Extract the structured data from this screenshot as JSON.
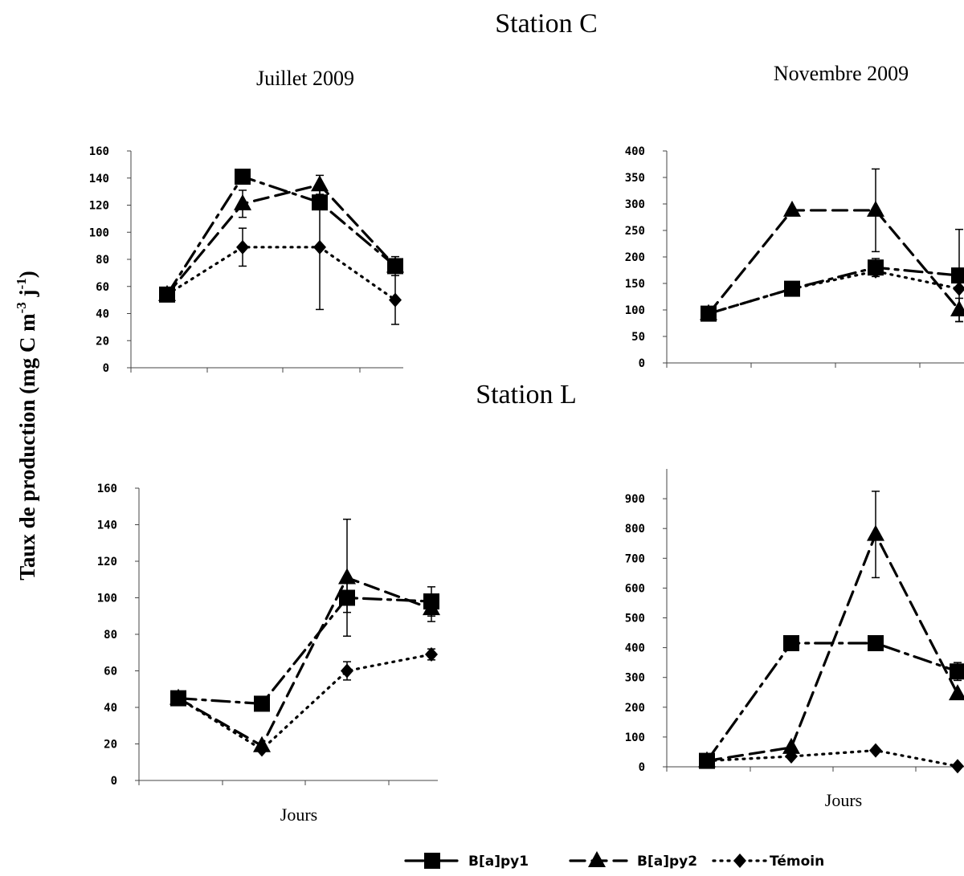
{
  "figure": {
    "title_c": "Station C",
    "title_l": "Station L",
    "col_left": "Juillet 2009",
    "col_right": "Novembre 2009",
    "ylabel_main": "Taux de production (mg C m",
    "ylabel_sup1": "-3",
    "ylabel_mid": " j",
    "ylabel_sup2": "-1",
    "ylabel_end": ")",
    "xlabel": "Jours"
  },
  "legend": [
    {
      "name": "B[a]py1",
      "marker": "square",
      "dash": "dashdot"
    },
    {
      "name": "B[a]py2",
      "marker": "triangle",
      "dash": "dash"
    },
    {
      "name": "Témoin",
      "marker": "diamond",
      "dash": "dot"
    }
  ],
  "chart_data": [
    {
      "id": "c_juillet",
      "type": "line",
      "title": "",
      "xlabel": "",
      "ylabel": "",
      "ylim": [
        0,
        160
      ],
      "yticks": [
        0,
        20,
        40,
        60,
        80,
        100,
        120,
        140,
        160
      ],
      "x": [
        0,
        1,
        2,
        3
      ],
      "series": [
        {
          "name": "B[a]py1",
          "values": [
            54,
            141,
            122,
            75
          ],
          "err": [
            0,
            0,
            0,
            7
          ]
        },
        {
          "name": "B[a]py2",
          "values": [
            54,
            121,
            135,
            75
          ],
          "err": [
            0,
            10,
            7,
            0
          ]
        },
        {
          "name": "Témoin",
          "values": [
            54,
            89,
            89,
            50
          ],
          "err": [
            0,
            14,
            46,
            18
          ]
        }
      ]
    },
    {
      "id": "c_novembre",
      "type": "line",
      "title": "",
      "xlabel": "",
      "ylabel": "",
      "ylim": [
        0,
        400
      ],
      "yticks": [
        0,
        50,
        100,
        150,
        200,
        250,
        300,
        350,
        400
      ],
      "x": [
        0,
        1,
        2,
        3
      ],
      "series": [
        {
          "name": "B[a]py1",
          "values": [
            93,
            140,
            180,
            165
          ],
          "err": [
            0,
            0,
            17,
            87
          ]
        },
        {
          "name": "B[a]py2",
          "values": [
            93,
            288,
            288,
            100
          ],
          "err": [
            0,
            0,
            78,
            22
          ]
        },
        {
          "name": "Témoin",
          "values": [
            93,
            140,
            173,
            140
          ],
          "err": [
            0,
            0,
            0,
            0
          ]
        }
      ]
    },
    {
      "id": "l_juillet",
      "type": "line",
      "title": "",
      "xlabel": "Jours",
      "ylabel": "",
      "ylim": [
        0,
        160
      ],
      "yticks": [
        0,
        20,
        40,
        60,
        80,
        100,
        120,
        140,
        160
      ],
      "x": [
        0,
        1,
        2,
        3
      ],
      "series": [
        {
          "name": "B[a]py1",
          "values": [
            45,
            42,
            100,
            98
          ],
          "err": [
            0,
            0,
            8,
            8
          ]
        },
        {
          "name": "B[a]py2",
          "values": [
            45,
            19,
            111,
            94
          ],
          "err": [
            0,
            0,
            32,
            7
          ]
        },
        {
          "name": "Témoin",
          "values": [
            45,
            17,
            60,
            69
          ],
          "err": [
            0,
            0,
            5,
            3
          ]
        }
      ]
    },
    {
      "id": "l_novembre",
      "type": "line",
      "title": "",
      "xlabel": "Jours",
      "ylabel": "",
      "ylim": [
        0,
        1000
      ],
      "yticks": [
        0,
        100,
        200,
        300,
        400,
        500,
        600,
        700,
        800,
        900
      ],
      "x": [
        0,
        1,
        2,
        3
      ],
      "series": [
        {
          "name": "B[a]py1",
          "values": [
            20,
            415,
            415,
            320
          ],
          "err": [
            0,
            0,
            0,
            30
          ]
        },
        {
          "name": "B[a]py2",
          "values": [
            20,
            65,
            780,
            245
          ],
          "err": [
            0,
            0,
            145,
            0
          ]
        },
        {
          "name": "Témoin",
          "values": [
            20,
            35,
            55,
            2
          ],
          "err": [
            0,
            0,
            0,
            0
          ]
        }
      ]
    }
  ]
}
